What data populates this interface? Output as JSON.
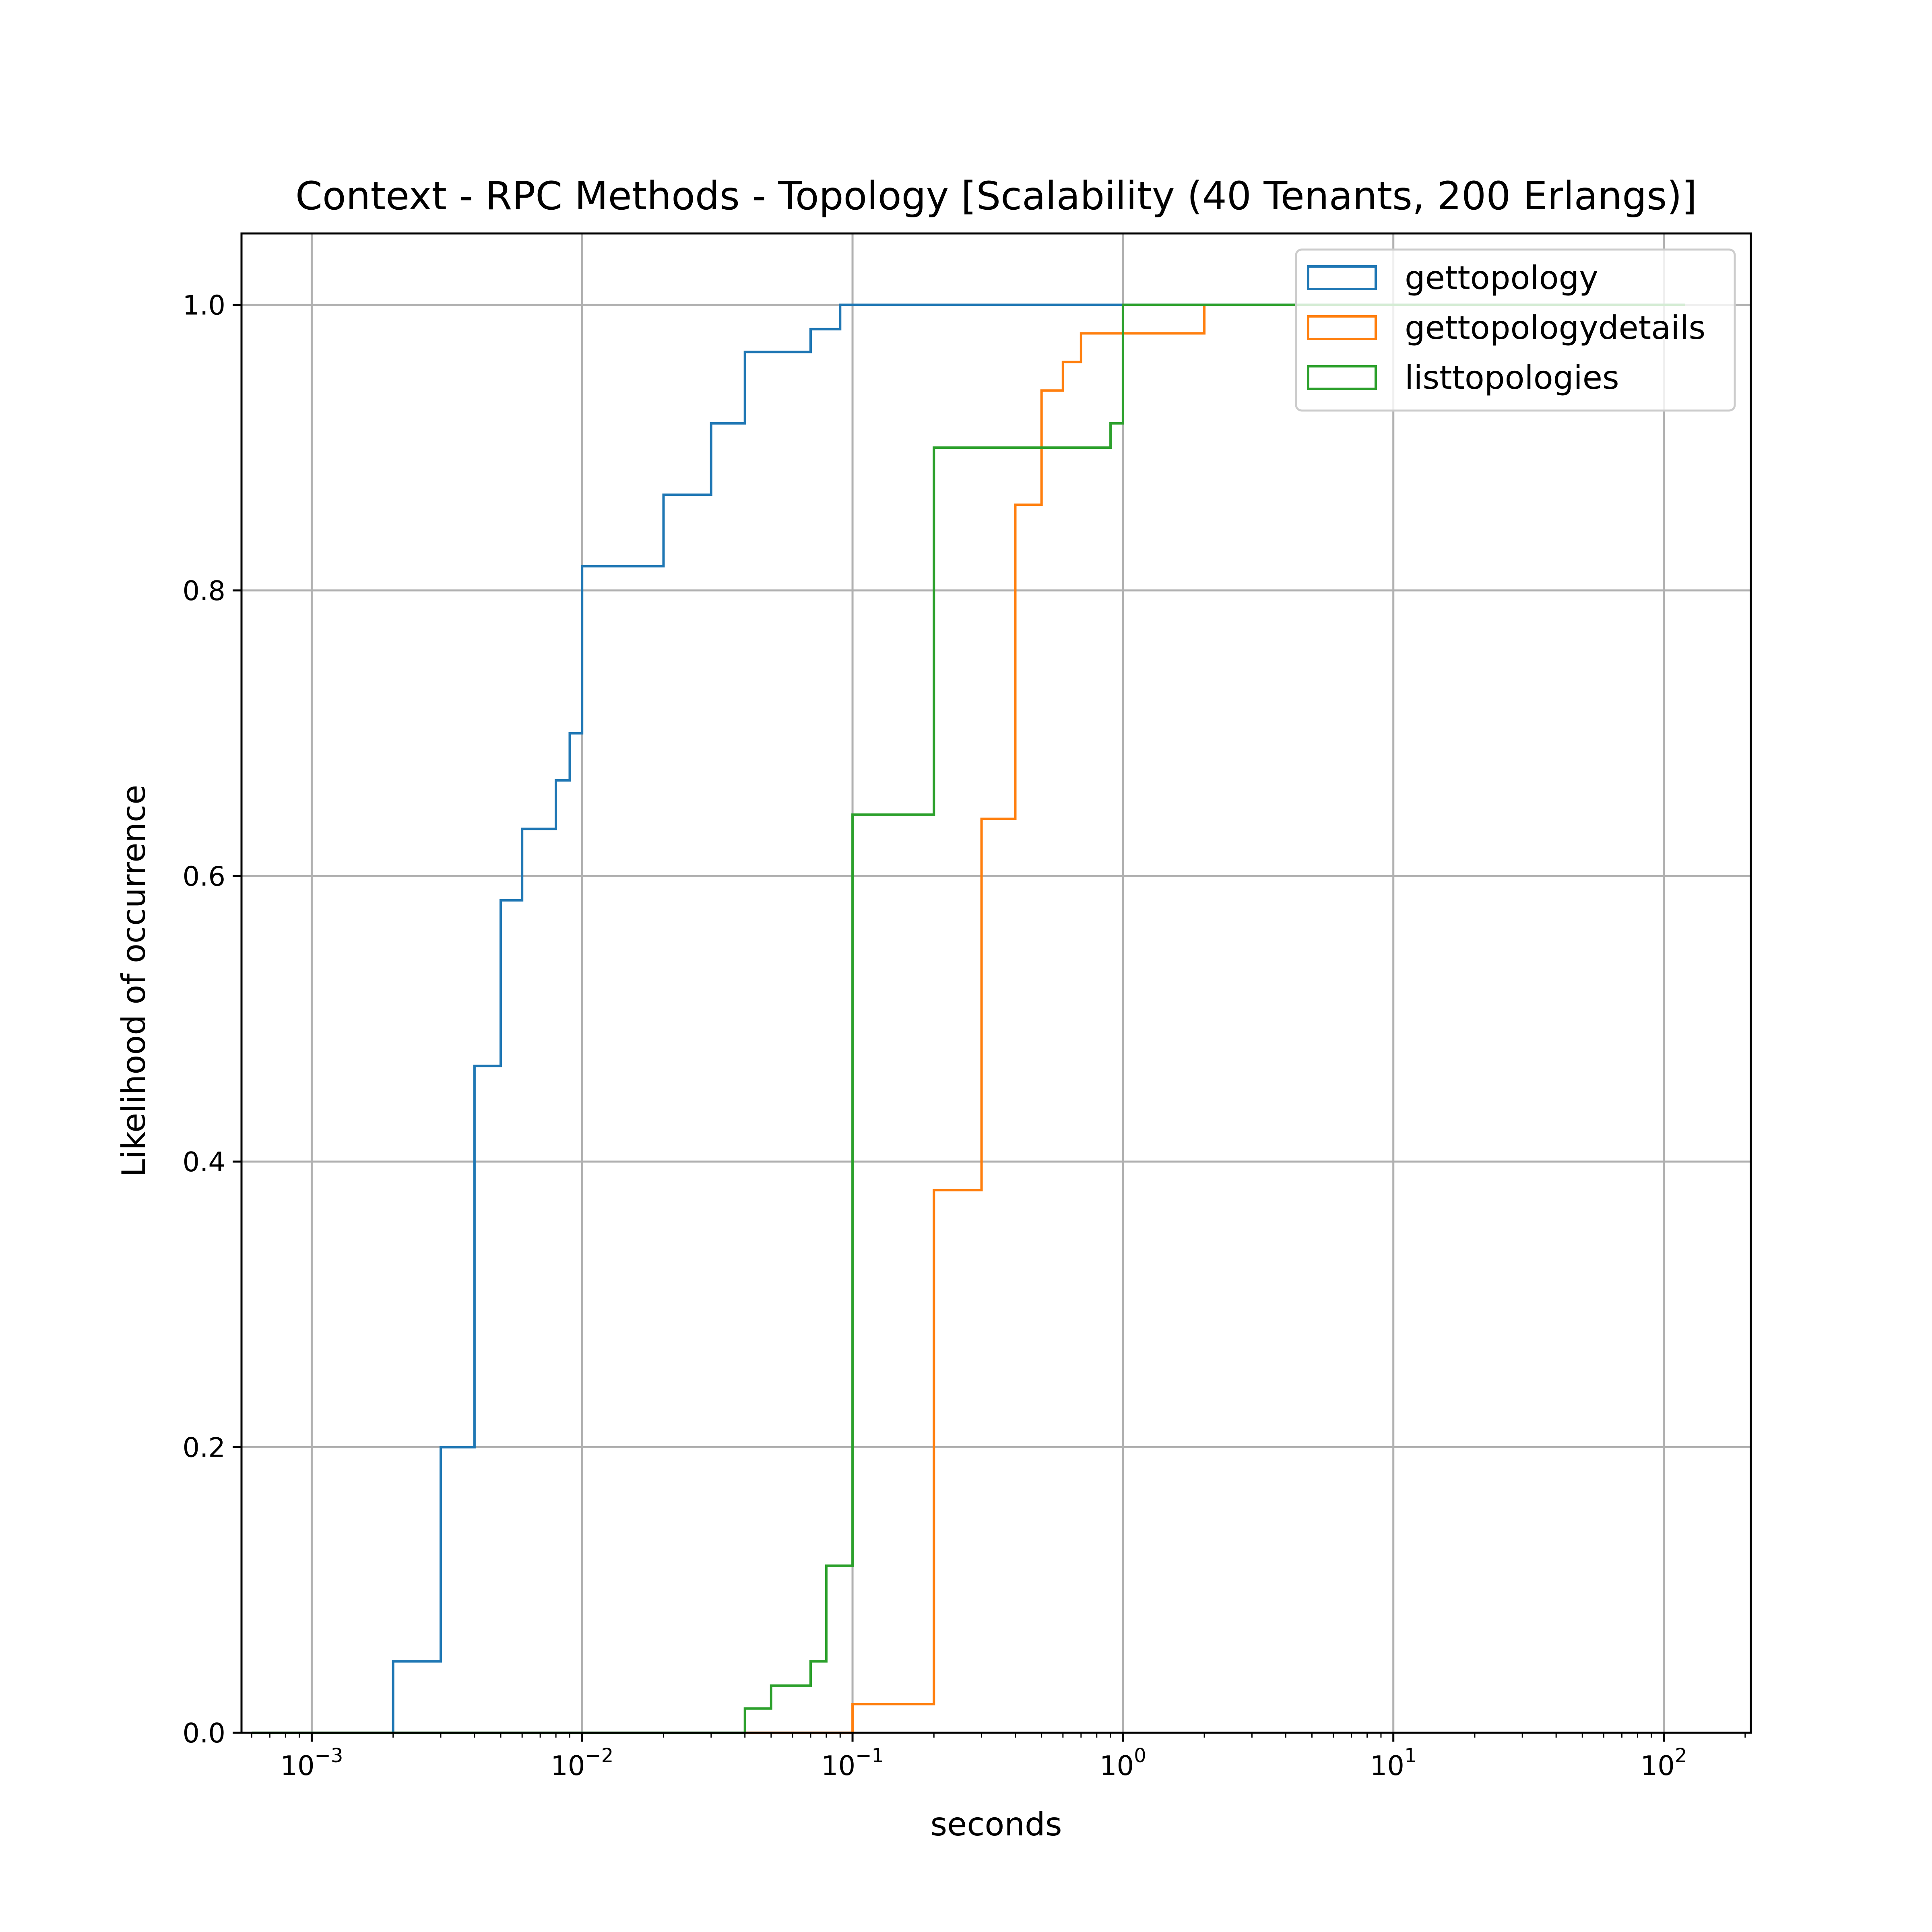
{
  "chart_data": {
    "type": "line",
    "step": true,
    "title": "Context - RPC Methods - Topology [Scalability (40 Tenants, 200 Erlangs)]",
    "xlabel": "seconds",
    "ylabel": "Likelihood of occurrence",
    "xscale": "log",
    "xlim": [
      0.00055,
      210
    ],
    "ylim": [
      0,
      1.05
    ],
    "grid": true,
    "legend_position": "top-right",
    "x_ticks": [
      {
        "value": 0.001,
        "base": "10",
        "exp": "−3"
      },
      {
        "value": 0.01,
        "base": "10",
        "exp": "−2"
      },
      {
        "value": 0.1,
        "base": "10",
        "exp": "−1"
      },
      {
        "value": 1,
        "base": "10",
        "exp": "0"
      },
      {
        "value": 10,
        "base": "10",
        "exp": "1"
      },
      {
        "value": 100,
        "base": "10",
        "exp": "2"
      }
    ],
    "y_ticks": [
      {
        "value": 0.0,
        "label": "0.0"
      },
      {
        "value": 0.2,
        "label": "0.2"
      },
      {
        "value": 0.4,
        "label": "0.4"
      },
      {
        "value": 0.6,
        "label": "0.6"
      },
      {
        "value": 0.8,
        "label": "0.8"
      },
      {
        "value": 1.0,
        "label": "1.0"
      }
    ],
    "series": [
      {
        "name": "gettopology",
        "color": "#1f77b4",
        "x": [
          0.0006,
          0.002,
          0.003,
          0.004,
          0.005,
          0.006,
          0.008,
          0.009,
          0.01,
          0.02,
          0.03,
          0.04,
          0.07,
          0.09,
          0.1,
          1,
          120
        ],
        "y": [
          0,
          0.05,
          0.2,
          0.467,
          0.583,
          0.633,
          0.667,
          0.7,
          0.817,
          0.867,
          0.917,
          0.967,
          0.983,
          1.0,
          1.0,
          1.0,
          1.0
        ]
      },
      {
        "name": "gettopologydetails",
        "color": "#ff7f0e",
        "x": [
          0.0006,
          0.1,
          0.2,
          0.3,
          0.4,
          0.5,
          0.6,
          0.7,
          1,
          2
        ],
        "y": [
          0,
          0.02,
          0.38,
          0.64,
          0.86,
          0.94,
          0.96,
          0.98,
          0.98,
          1.0
        ]
      },
      {
        "name": "listtopologies",
        "color": "#2ca02c",
        "x": [
          0.0006,
          0.04,
          0.05,
          0.07,
          0.08,
          0.1,
          0.2,
          0.9,
          1,
          120
        ],
        "y": [
          0,
          0.017,
          0.033,
          0.05,
          0.117,
          0.643,
          0.9,
          0.917,
          1.0,
          1.0
        ]
      }
    ]
  }
}
